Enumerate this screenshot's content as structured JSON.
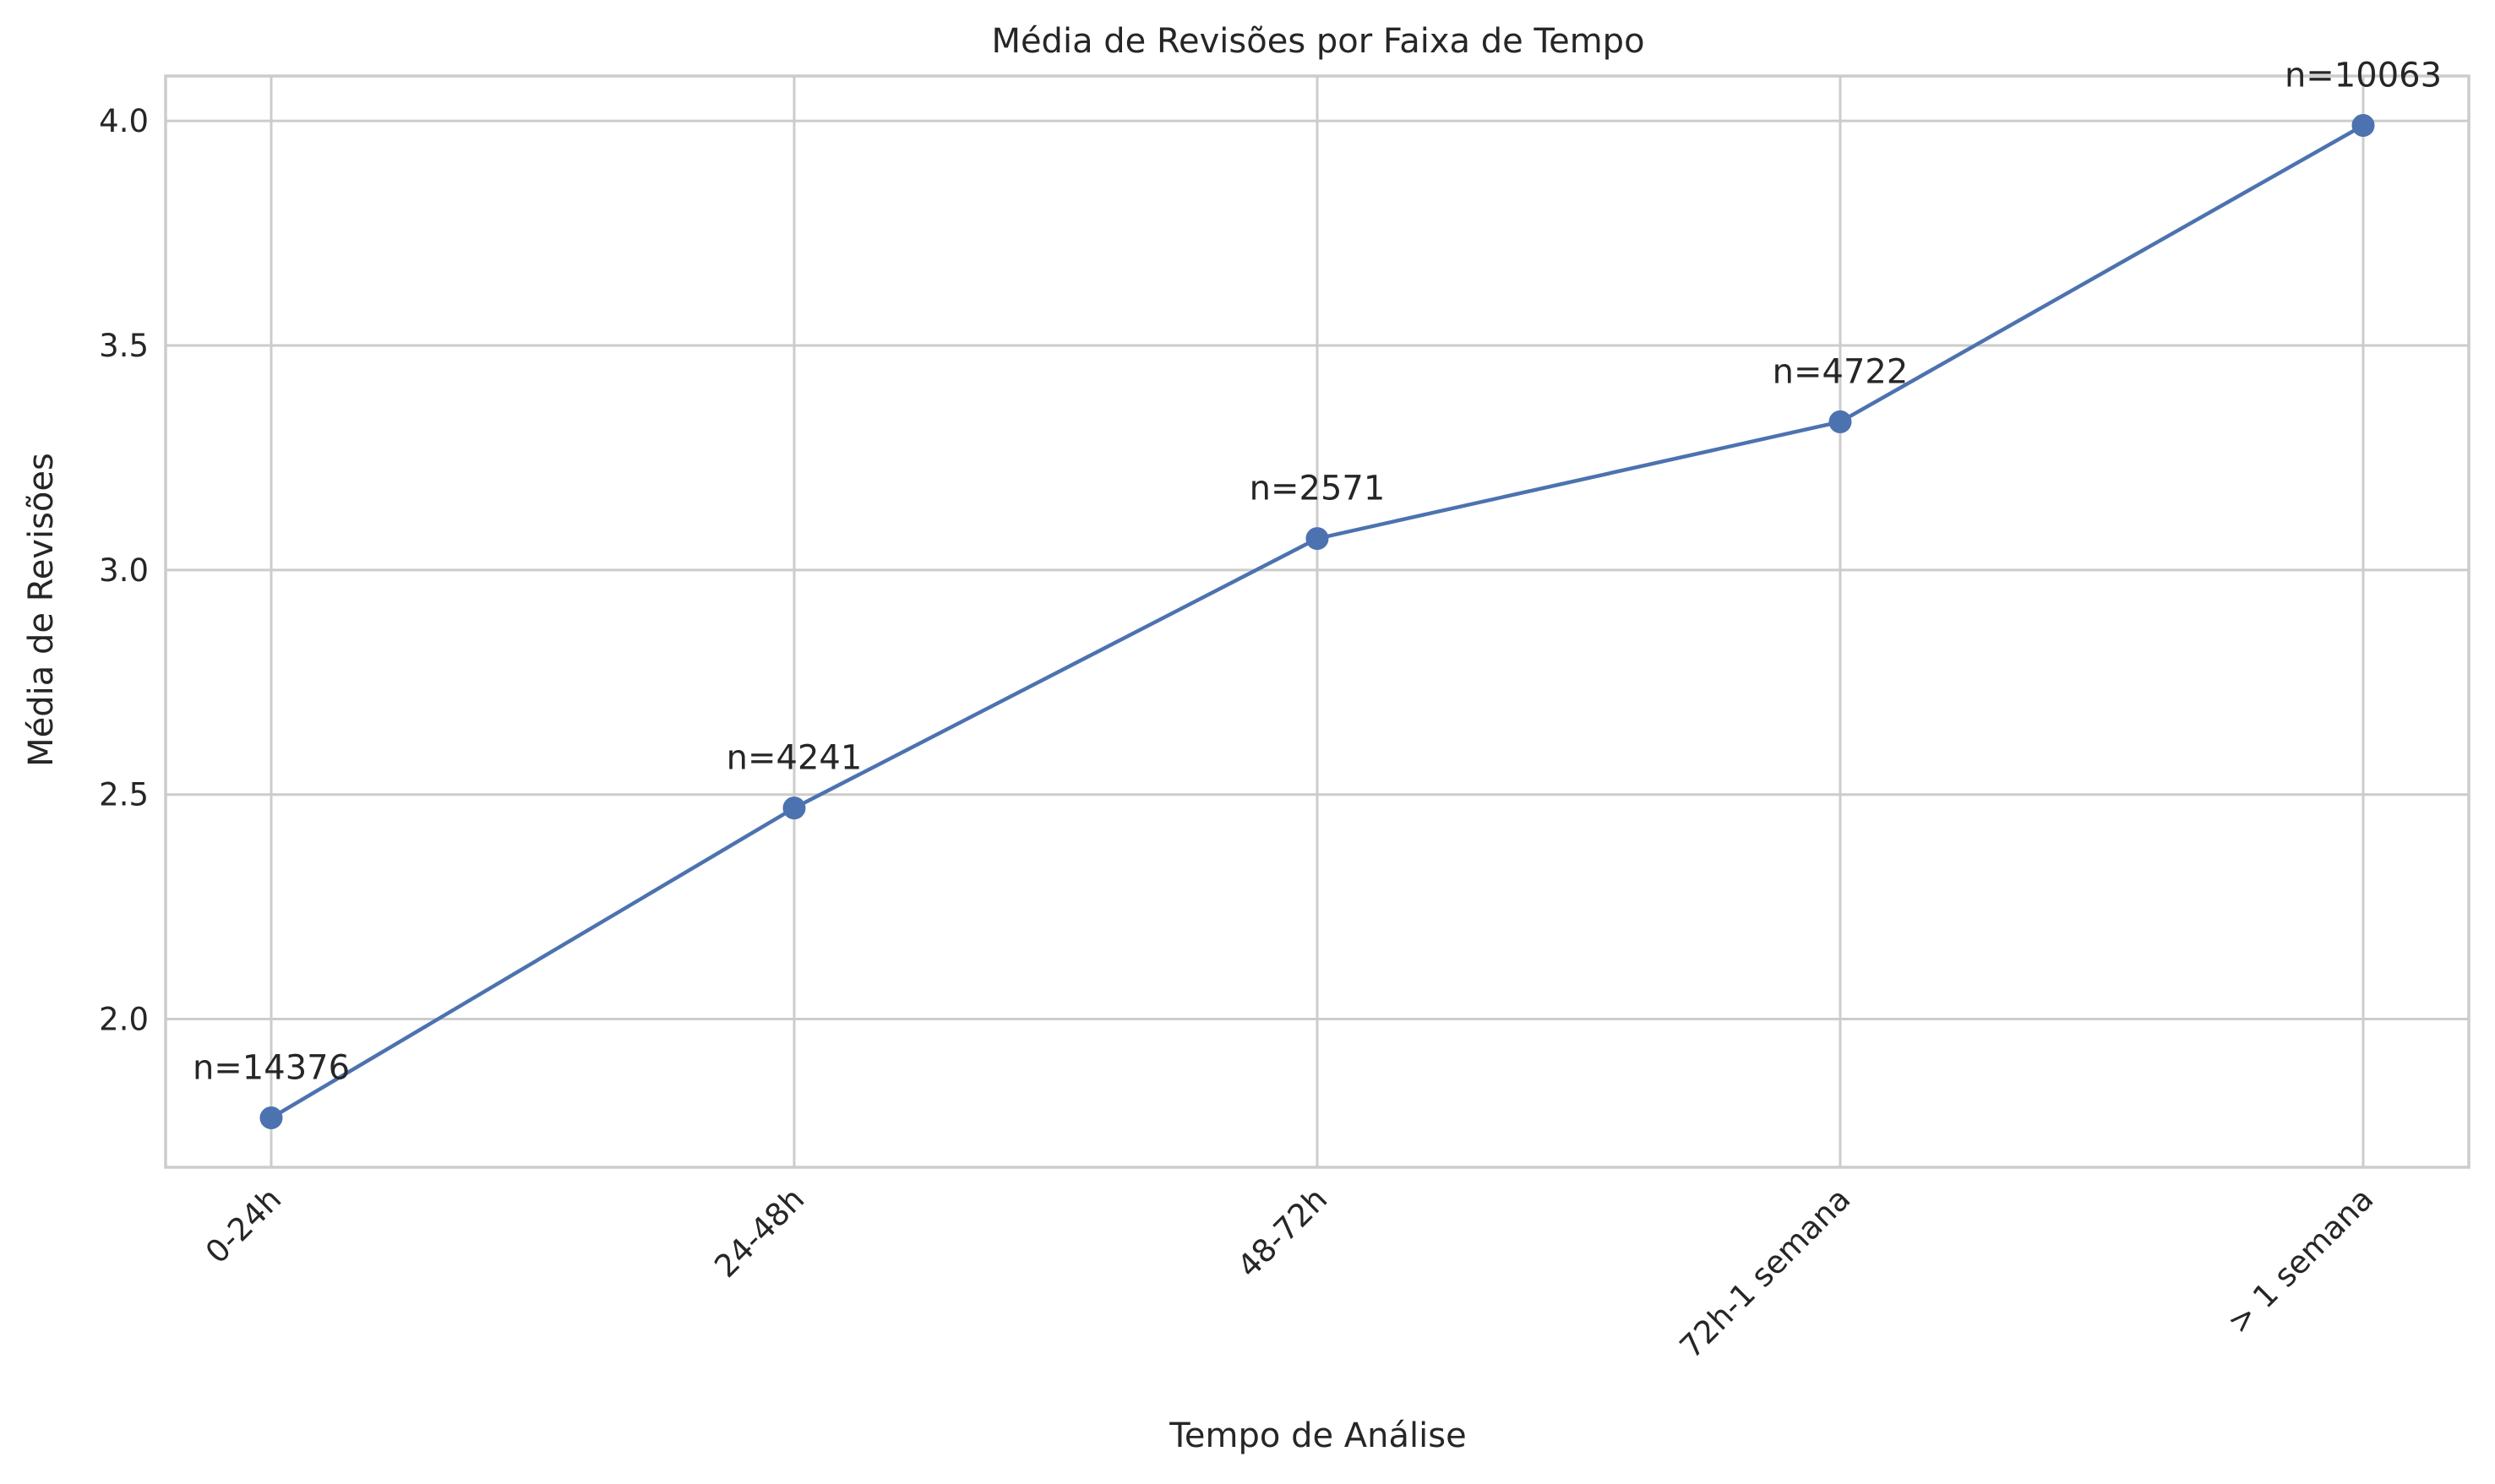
{
  "chart_data": {
    "type": "line",
    "title": "Média de Revisões por Faixa de Tempo",
    "xlabel": "Tempo de Análise",
    "ylabel": "Média de Revisões",
    "categories": [
      "0-24h",
      "24-48h",
      "48-72h",
      "72h-1 semana",
      "> 1 semana"
    ],
    "series": [
      {
        "values": [
          1.78,
          2.47,
          3.07,
          3.33,
          3.99
        ],
        "labels": [
          "n=14376",
          "n=4241",
          "n=2571",
          "n=4722",
          "n=10063"
        ]
      }
    ],
    "ylim": [
      1.67,
      4.1
    ],
    "yticks": [
      2.0,
      2.5,
      3.0,
      3.5,
      4.0
    ],
    "ytick_labels": [
      "2.0",
      "2.5",
      "3.0",
      "3.5",
      "4.0"
    ],
    "grid": true,
    "color": "#4c72b0"
  }
}
